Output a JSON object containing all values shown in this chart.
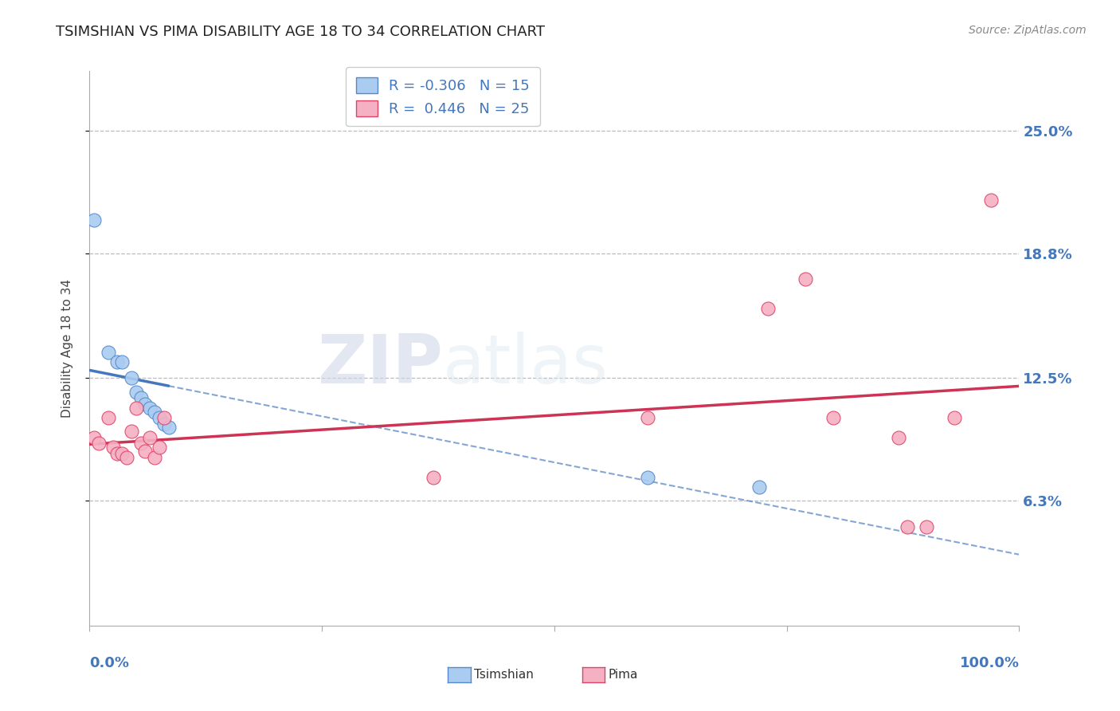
{
  "title": "TSIMSHIAN VS PIMA DISABILITY AGE 18 TO 34 CORRELATION CHART",
  "source": "Source: ZipAtlas.com",
  "ylabel": "Disability Age 18 to 34",
  "watermark_text": "ZIPatlas",
  "tsimshian_color": "#aaccf0",
  "tsimshian_edge": "#5588cc",
  "tsimshian_line_color": "#4477bb",
  "tsimshian_R": -0.306,
  "tsimshian_N": 15,
  "tsimshian_x": [
    0.5,
    2.0,
    3.0,
    3.5,
    4.5,
    5.0,
    5.5,
    6.0,
    6.5,
    7.0,
    7.5,
    8.0,
    8.5,
    60.0,
    72.0
  ],
  "tsimshian_y": [
    20.5,
    13.8,
    13.3,
    13.3,
    12.5,
    11.8,
    11.5,
    11.2,
    11.0,
    10.8,
    10.5,
    10.2,
    10.0,
    7.5,
    7.0
  ],
  "pima_color": "#f5b0c4",
  "pima_edge": "#dd4466",
  "pima_line_color": "#cc3355",
  "pima_R": 0.446,
  "pima_N": 25,
  "pima_x": [
    0.5,
    1.0,
    2.0,
    2.5,
    3.0,
    3.5,
    4.0,
    4.5,
    5.0,
    5.5,
    6.0,
    6.5,
    7.0,
    7.5,
    8.0,
    37.0,
    60.0,
    73.0,
    77.0,
    80.0,
    87.0,
    88.0,
    90.0,
    93.0,
    97.0
  ],
  "pima_y": [
    9.5,
    9.2,
    10.5,
    9.0,
    8.7,
    8.7,
    8.5,
    9.8,
    11.0,
    9.2,
    8.8,
    9.5,
    8.5,
    9.0,
    10.5,
    7.5,
    10.5,
    16.0,
    17.5,
    10.5,
    9.5,
    5.0,
    5.0,
    10.5,
    21.5
  ],
  "xlim": [
    0,
    100
  ],
  "ylim": [
    0,
    28
  ],
  "ytick_values": [
    6.3,
    12.5,
    18.8,
    25.0
  ],
  "ytick_labels": [
    "6.3%",
    "12.5%",
    "18.8%",
    "25.0%"
  ],
  "grid_color": "#bbbbbb",
  "bg_color": "#ffffff",
  "title_color": "#222222",
  "tick_label_color": "#4477bb",
  "source_color": "#888888"
}
